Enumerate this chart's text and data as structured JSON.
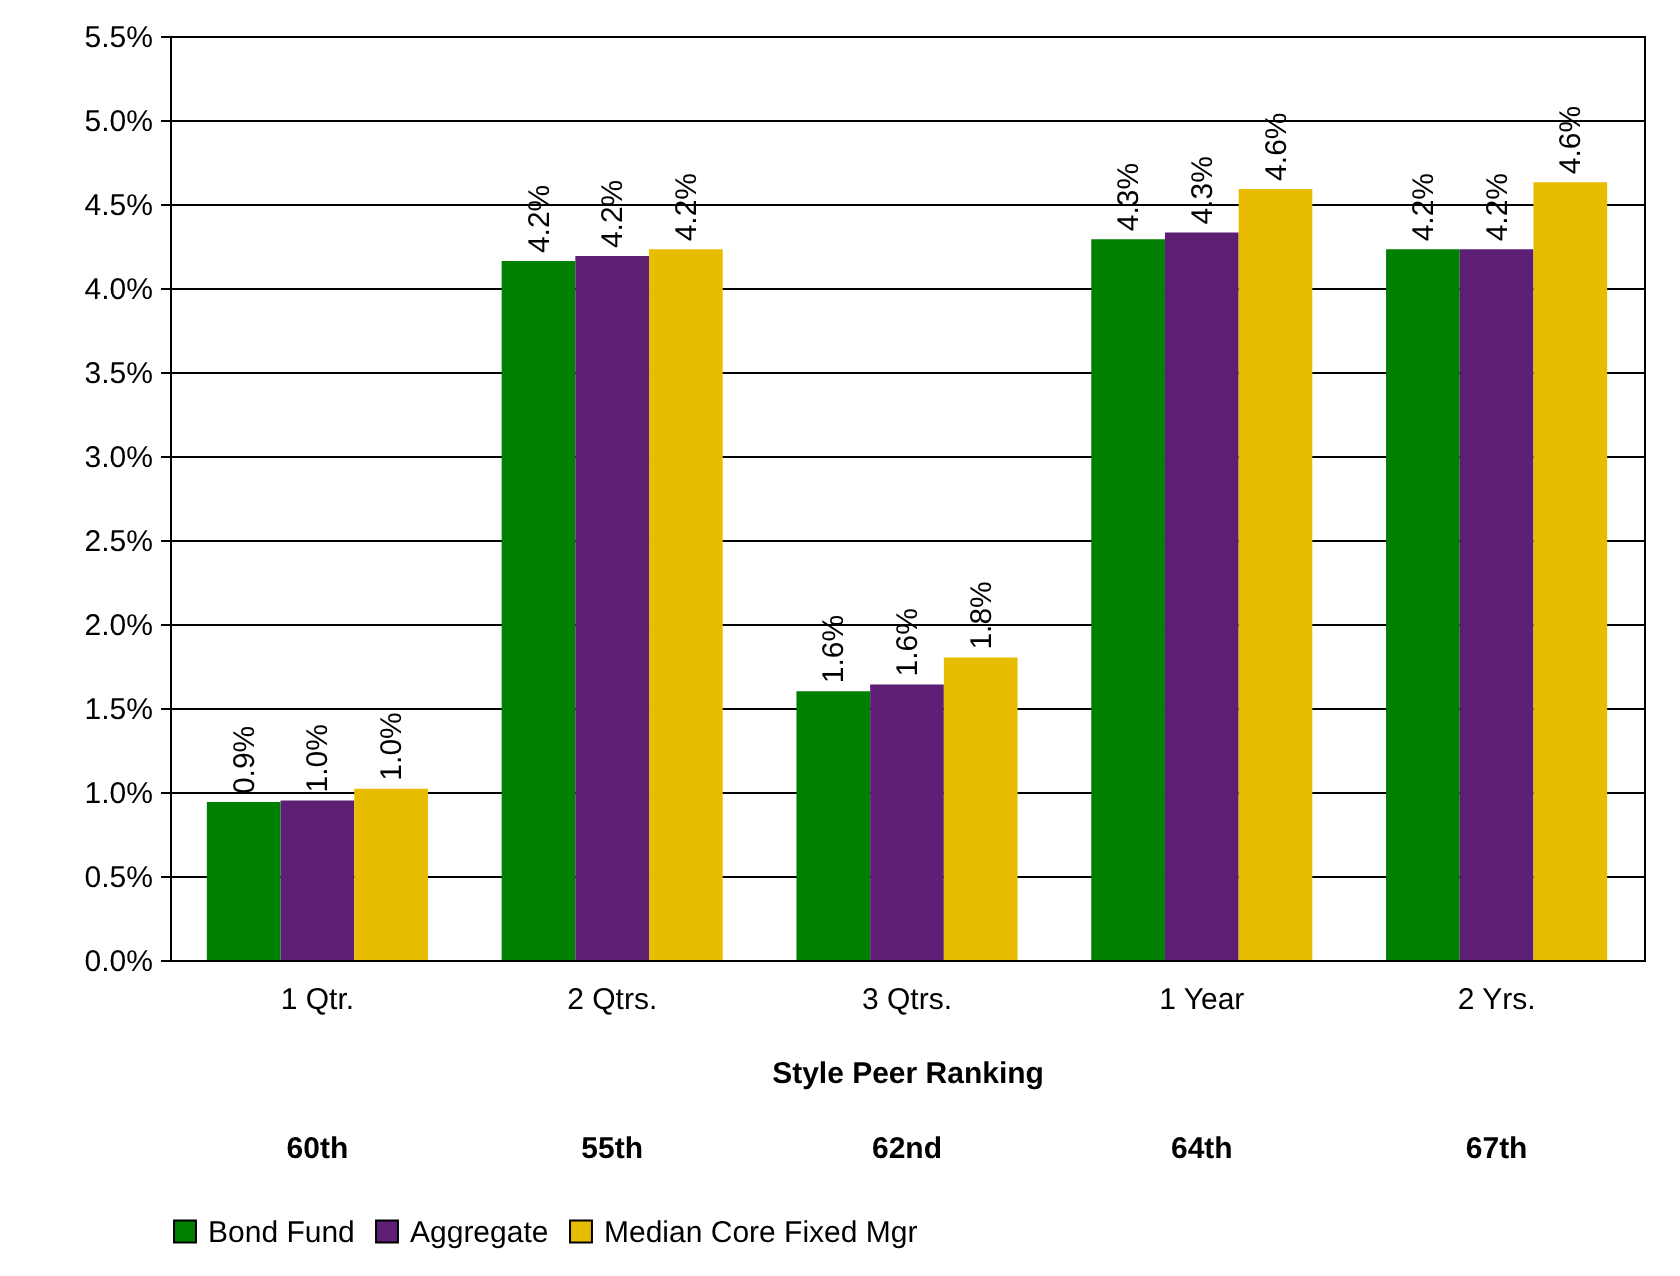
{
  "chart_data": {
    "type": "bar",
    "xlabel": "Style Peer Ranking",
    "categories": [
      "1 Qtr.",
      "2 Qtrs.",
      "3 Qtrs.",
      "1 Year",
      "2 Yrs."
    ],
    "series": [
      {
        "name": "Bond Fund",
        "color": "#008000",
        "values": [
          0.94,
          4.16,
          1.6,
          4.29,
          4.23
        ],
        "value_labels": [
          "0.9%",
          "4.2%",
          "1.6%",
          "4.3%",
          "4.2%"
        ]
      },
      {
        "name": "Aggregate",
        "color": "#5c1f73",
        "values": [
          0.95,
          4.19,
          1.64,
          4.33,
          4.23
        ],
        "value_labels": [
          "1.0%",
          "4.2%",
          "1.6%",
          "4.3%",
          "4.2%"
        ]
      },
      {
        "name": "Median Core Fixed Mgr",
        "color": "#e8bc00",
        "values": [
          1.02,
          4.23,
          1.8,
          4.59,
          4.63
        ],
        "value_labels": [
          "1.0%",
          "4.2%",
          "1.8%",
          "4.6%",
          "4.6%"
        ]
      }
    ],
    "ylim": [
      0,
      5.5
    ],
    "yticks": [
      {
        "value": 0,
        "label": "0.0%"
      },
      {
        "value": 0.5,
        "label": "0.5%"
      },
      {
        "value": 1,
        "label": "1.0%"
      },
      {
        "value": 1.5,
        "label": "1.5%"
      },
      {
        "value": 2,
        "label": "2.0%"
      },
      {
        "value": 2.5,
        "label": "2.5%"
      },
      {
        "value": 3,
        "label": "3.0%"
      },
      {
        "value": 3.5,
        "label": "3.5%"
      },
      {
        "value": 4,
        "label": "4.0%"
      },
      {
        "value": 4.5,
        "label": "4.5%"
      },
      {
        "value": 5,
        "label": "5.0%"
      },
      {
        "value": 5.5,
        "label": "5.5%"
      }
    ],
    "annotations": [
      "60th",
      "55th",
      "62nd",
      "64th",
      "67th"
    ],
    "grid": "y",
    "legend": "bottom"
  }
}
